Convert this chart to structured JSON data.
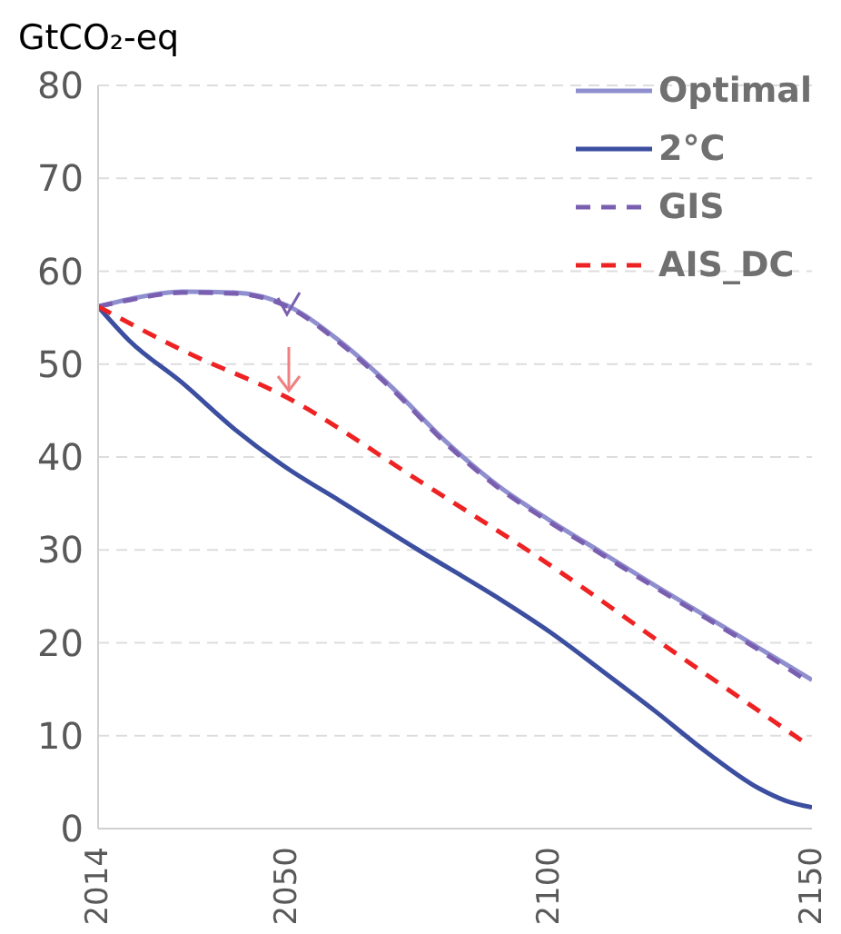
{
  "chart_data": {
    "type": "line",
    "ylabel": "GtCO₂-eq",
    "xlim": [
      2014,
      2150
    ],
    "xticks": [
      2014,
      2050,
      2100,
      2150
    ],
    "ylim": [
      0,
      80
    ],
    "yticks": [
      0,
      10,
      20,
      30,
      40,
      50,
      60,
      70,
      80
    ],
    "grid": "y",
    "legend": "top right",
    "series": [
      {
        "name": "Optimal",
        "color": "#8f8fd0",
        "line_style": "solid",
        "x": [
          2014,
          2020,
          2030,
          2040,
          2050,
          2060,
          2070,
          2080,
          2090,
          2100,
          2110,
          2120,
          2130,
          2140,
          2150
        ],
        "values": [
          56.2,
          57,
          57.8,
          57.7,
          56.3,
          52.5,
          47.5,
          41.8,
          37,
          33.2,
          29.7,
          26.2,
          22.8,
          19.4,
          16
        ]
      },
      {
        "name": "2°C",
        "color": "#3c4ea0",
        "line_style": "solid",
        "x": [
          2014,
          2020,
          2030,
          2040,
          2050,
          2060,
          2075,
          2090,
          2100,
          2110,
          2120,
          2130,
          2140,
          2145,
          2150
        ],
        "values": [
          56.2,
          52.5,
          48,
          43,
          38.8,
          35.3,
          30,
          24.9,
          21.2,
          17,
          12.7,
          8.2,
          4.3,
          3,
          2.3
        ]
      },
      {
        "name": "GIS",
        "color": "#7a5fb0",
        "line_style": "dashed",
        "x": [
          2014,
          2020,
          2030,
          2040,
          2050,
          2060,
          2070,
          2080,
          2090,
          2100,
          2110,
          2120,
          2130,
          2140,
          2148
        ],
        "values": [
          56.2,
          56.9,
          57.7,
          57.6,
          56.2,
          52.3,
          47.3,
          41.6,
          36.8,
          33,
          29.5,
          26,
          22.6,
          19.2,
          16.3
        ]
      },
      {
        "name": "AIS_DC",
        "color": "#ee2222",
        "line_style": "dashed",
        "x": [
          2014,
          2030,
          2050,
          2075,
          2100,
          2125,
          2148
        ],
        "values": [
          56.2,
          51.5,
          46.4,
          37.5,
          28.4,
          18.5,
          9.5
        ]
      }
    ]
  }
}
